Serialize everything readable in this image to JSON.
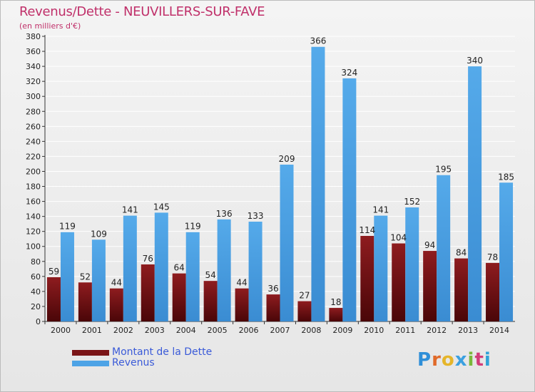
{
  "chart_data": {
    "type": "bar",
    "title": "Revenus/Dette - NEUVILLERS-SUR-FAVE",
    "subtitle": "(en milliers d'€)",
    "categories": [
      "2000",
      "2001",
      "2002",
      "2003",
      "2004",
      "2005",
      "2006",
      "2007",
      "2008",
      "2009",
      "2010",
      "2011",
      "2012",
      "2013",
      "2014"
    ],
    "series": [
      {
        "name": "Montant de la Dette",
        "color": "#7a1416",
        "values": [
          59,
          52,
          44,
          76,
          64,
          54,
          44,
          36,
          27,
          18,
          114,
          104,
          94,
          84,
          78
        ]
      },
      {
        "name": "Revenus",
        "color": "#4da3e6",
        "values": [
          119,
          109,
          141,
          145,
          119,
          136,
          133,
          209,
          366,
          324,
          141,
          152,
          195,
          340,
          185
        ]
      }
    ],
    "ylim": [
      0,
      380
    ],
    "ytick_step": 20,
    "xlabel": "",
    "ylabel": "",
    "grid": true,
    "legend_position": "bottom-left"
  },
  "branding": {
    "logo_text": "Proxiti"
  }
}
